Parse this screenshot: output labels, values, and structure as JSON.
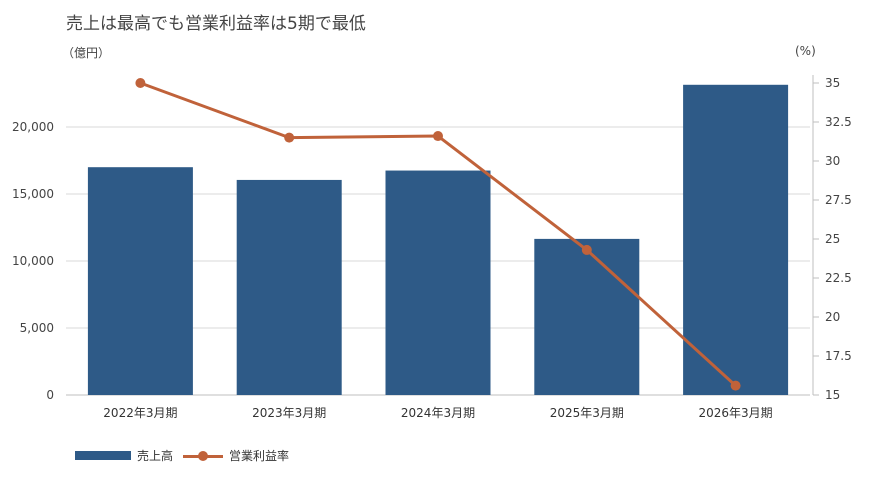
{
  "chart_data": {
    "type": "bar",
    "title": "売上は最高でも営業利益率は5期で最低",
    "categories": [
      "2022年3月期",
      "2023年3月期",
      "2024年3月期",
      "2025年3月期",
      "2026年3月期"
    ],
    "y_left": {
      "unit_label": "（億円）",
      "lim": [
        0,
        25000
      ],
      "ticks": [
        0,
        5000,
        10000,
        15000,
        20000
      ],
      "tick_labels": [
        "0",
        "5,000",
        "10,000",
        "15,000",
        "20,000"
      ]
    },
    "y_right": {
      "unit_label": "(%)",
      "lim": [
        15,
        35
      ],
      "ticks": [
        15,
        17.5,
        20,
        22.5,
        25,
        27.5,
        30,
        32.5,
        35
      ],
      "tick_labels": [
        "15",
        "17.5",
        "20",
        "22.5",
        "25",
        "27.5",
        "30",
        "32.5",
        "35"
      ]
    },
    "grid": true,
    "legend_position": "bottom-left",
    "series": [
      {
        "name": "売上高",
        "type": "bar",
        "axis": "left",
        "color": "#2e5a87",
        "values": [
          17000,
          16050,
          16750,
          11650,
          23150
        ]
      },
      {
        "name": "営業利益率",
        "type": "line",
        "axis": "right",
        "color": "#c0623a",
        "values": [
          35.0,
          31.5,
          31.6,
          24.3,
          15.6
        ]
      }
    ]
  }
}
